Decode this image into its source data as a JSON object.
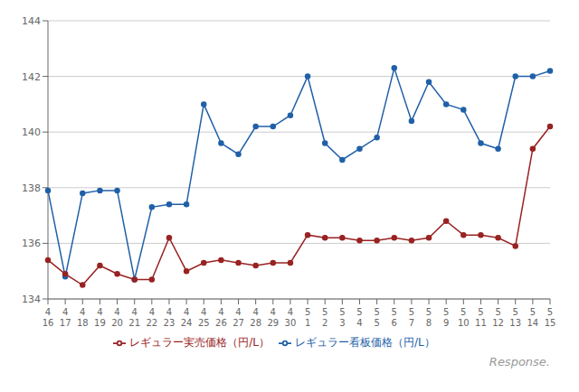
{
  "chart_data": {
    "type": "line",
    "categories": [
      "4\n16",
      "4\n17",
      "4\n18",
      "4\n19",
      "4\n20",
      "4\n21",
      "4\n22",
      "4\n23",
      "4\n24",
      "4\n25",
      "4\n26",
      "4\n27",
      "4\n28",
      "4\n29",
      "4\n30",
      "5\n1",
      "5\n2",
      "5\n3",
      "5\n4",
      "5\n5",
      "5\n6",
      "5\n7",
      "5\n8",
      "5\n9",
      "5\n10",
      "5\n11",
      "5\n12",
      "5\n13",
      "5\n14",
      "5\n15"
    ],
    "series": [
      {
        "name": "レギュラー看板価格（円/L）",
        "color": "#2060a8",
        "marker": "circle",
        "line_style": "solid",
        "values": [
          137.9,
          134.8,
          137.8,
          137.9,
          137.9,
          134.7,
          137.3,
          137.4,
          137.4,
          141.0,
          139.6,
          139.2,
          140.2,
          140.2,
          140.6,
          142.0,
          139.6,
          139.0,
          139.4,
          139.8,
          142.3,
          140.4,
          141.8,
          141.0,
          140.8,
          139.6,
          139.4,
          142.0,
          142.0,
          142.2
        ]
      },
      {
        "name": "レギュラー実売価格（円/L）",
        "color": "#992222",
        "marker": "circle",
        "line_style": "solid",
        "values": [
          135.4,
          134.9,
          134.5,
          135.2,
          134.9,
          134.7,
          134.7,
          136.2,
          135.0,
          135.3,
          135.4,
          135.3,
          135.2,
          135.3,
          135.3,
          136.3,
          136.2,
          136.2,
          136.1,
          136.1,
          136.2,
          136.1,
          136.2,
          136.8,
          136.3,
          136.3,
          136.2,
          135.9,
          139.4,
          140.2
        ]
      }
    ],
    "ylim": [
      134,
      144
    ],
    "yticks": [
      134,
      136,
      138,
      140,
      142,
      144
    ],
    "grid": true,
    "legend": "bottom",
    "annotations": [
      "Response."
    ]
  }
}
